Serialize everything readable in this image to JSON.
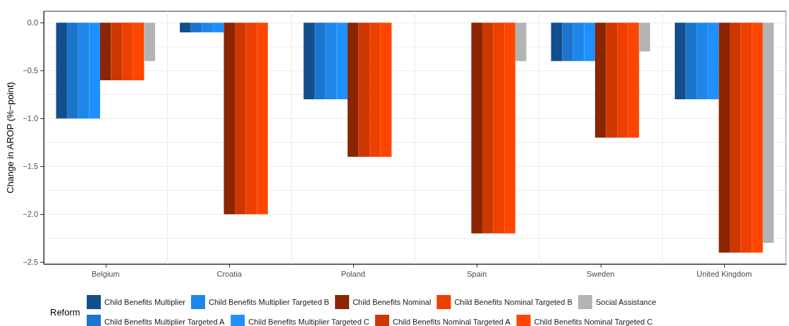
{
  "chart_data": {
    "type": "bar",
    "ylabel": "Change in AROP (%−point)",
    "legend_title": "Reform",
    "legend": "bottom",
    "grid": true,
    "categories": [
      "Belgium",
      "Croatia",
      "Poland",
      "Spain",
      "Sweden",
      "United Kingdom"
    ],
    "ylim": [
      -2.52,
      0.12
    ],
    "yticks": [
      {
        "value": 0,
        "label": "0.0"
      },
      {
        "value": -0.5,
        "label": "−0.5"
      },
      {
        "value": -1,
        "label": "−1.0"
      },
      {
        "value": -1.5,
        "label": "−1.5"
      },
      {
        "value": -2,
        "label": "−2.0"
      },
      {
        "value": -2.5,
        "label": "−2.5"
      }
    ],
    "series": [
      {
        "name": "Child Benefits Multiplier",
        "color": "#124f8c",
        "values": [
          -1,
          -0.1,
          -0.8,
          null,
          -0.4,
          -0.8
        ]
      },
      {
        "name": "Child Benefits Multiplier Targeted A",
        "color": "#1c75cc",
        "values": [
          -1,
          -0.1,
          -0.8,
          null,
          -0.4,
          -0.8
        ]
      },
      {
        "name": "Child Benefits Multiplier Targeted B",
        "color": "#1e86e8",
        "values": [
          -1,
          -0.1,
          -0.8,
          null,
          -0.4,
          -0.8
        ]
      },
      {
        "name": "Child Benefits Multiplier Targeted C",
        "color": "#1e90ff",
        "values": [
          -1,
          -0.1,
          -0.8,
          null,
          -0.4,
          -0.8
        ]
      },
      {
        "name": "Child Benefits Nominal",
        "color": "#8b2500",
        "values": [
          -0.6,
          -2,
          -1.4,
          -2.2,
          -1.2,
          -2.4
        ]
      },
      {
        "name": "Child Benefits Nominal Targeted A",
        "color": "#cd3700",
        "values": [
          -0.6,
          -2,
          -1.4,
          -2.2,
          -1.2,
          -2.4
        ]
      },
      {
        "name": "Child Benefits Nominal Targeted B",
        "color": "#ee4000",
        "values": [
          -0.6,
          -2,
          -1.4,
          -2.2,
          -1.2,
          -2.4
        ]
      },
      {
        "name": "Child Benefits Nominal Targeted C",
        "color": "#ff4500",
        "values": [
          -0.6,
          -2,
          -1.4,
          -2.2,
          -1.2,
          -2.4
        ]
      },
      {
        "name": "Social Assistance",
        "color": "#b3b3b3",
        "values": [
          -0.4,
          null,
          null,
          -0.4,
          -0.3,
          -2.3
        ]
      }
    ]
  }
}
